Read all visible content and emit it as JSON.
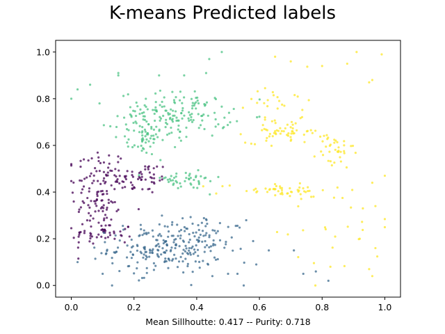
{
  "chart_data": {
    "type": "scatter",
    "title": "K-means Predicted labels",
    "xlabel": "Mean Sillhoutte: 0.417 -- Purity: 0.718",
    "ylabel": "",
    "xlim": [
      -0.05,
      1.05
    ],
    "ylim": [
      -0.05,
      1.05
    ],
    "xticks": [
      "0.0",
      "0.2",
      "0.4",
      "0.6",
      "0.8",
      "1.0"
    ],
    "yticks": [
      "0.0",
      "0.2",
      "0.4",
      "0.6",
      "0.8",
      "1.0"
    ],
    "grid": false,
    "legend": "none",
    "clusters": [
      {
        "color": "#440154",
        "regions": [
          {
            "cx": 0.09,
            "cy": 0.4,
            "sx": 0.045,
            "sy": 0.1,
            "n": 120
          },
          {
            "cx": 0.22,
            "cy": 0.46,
            "sx": 0.05,
            "sy": 0.035,
            "n": 55
          },
          {
            "cx": 0.1,
            "cy": 0.22,
            "sx": 0.05,
            "sy": 0.025,
            "n": 45
          }
        ]
      },
      {
        "color": "#3b6a8e",
        "regions": [
          {
            "cx": 0.3,
            "cy": 0.16,
            "sx": 0.09,
            "sy": 0.055,
            "n": 220
          },
          {
            "cx": 0.45,
            "cy": 0.22,
            "sx": 0.05,
            "sy": 0.03,
            "n": 30
          }
        ]
      },
      {
        "color": "#4cc384",
        "regions": [
          {
            "cx": 0.33,
            "cy": 0.73,
            "sx": 0.09,
            "sy": 0.05,
            "n": 170
          },
          {
            "cx": 0.23,
            "cy": 0.62,
            "sx": 0.025,
            "sy": 0.03,
            "n": 45
          },
          {
            "cx": 0.36,
            "cy": 0.45,
            "sx": 0.06,
            "sy": 0.02,
            "n": 45
          }
        ]
      },
      {
        "color": "#fde725",
        "regions": [
          {
            "cx": 0.68,
            "cy": 0.66,
            "sx": 0.06,
            "sy": 0.025,
            "n": 60
          },
          {
            "cx": 0.84,
            "cy": 0.57,
            "sx": 0.03,
            "sy": 0.04,
            "n": 35
          },
          {
            "cx": 0.65,
            "cy": 0.41,
            "sx": 0.09,
            "sy": 0.015,
            "n": 50
          },
          {
            "cx": 0.67,
            "cy": 0.8,
            "sx": 0.05,
            "sy": 0.04,
            "n": 20
          },
          {
            "cx": 0.85,
            "cy": 0.25,
            "sx": 0.1,
            "sy": 0.12,
            "n": 25
          }
        ]
      }
    ],
    "outliers": [
      {
        "x": 0.0,
        "y": 0.8,
        "c": 2
      },
      {
        "x": 0.02,
        "y": 0.84,
        "c": 2
      },
      {
        "x": 0.06,
        "y": 0.86,
        "c": 2
      },
      {
        "x": 0.09,
        "y": 0.78,
        "c": 2
      },
      {
        "x": 0.15,
        "y": 0.91,
        "c": 2
      },
      {
        "x": 0.15,
        "y": 0.9,
        "c": 2
      },
      {
        "x": 0.28,
        "y": 0.9,
        "c": 2
      },
      {
        "x": 0.44,
        "y": 0.97,
        "c": 2
      },
      {
        "x": 0.48,
        "y": 1.0,
        "c": 2
      },
      {
        "x": 0.43,
        "y": 0.91,
        "c": 2
      },
      {
        "x": 0.36,
        "y": 0.9,
        "c": 2
      },
      {
        "x": 0.0,
        "y": 0.52,
        "c": 0
      },
      {
        "x": 0.04,
        "y": 0.54,
        "c": 0
      },
      {
        "x": 0.02,
        "y": 0.1,
        "c": 1
      },
      {
        "x": 0.1,
        "y": 0.05,
        "c": 1
      },
      {
        "x": 0.13,
        "y": 0.0,
        "c": 1
      },
      {
        "x": 0.5,
        "y": 0.05,
        "c": 1
      },
      {
        "x": 0.55,
        "y": 0.0,
        "c": 1
      },
      {
        "x": 0.59,
        "y": 0.09,
        "c": 1
      },
      {
        "x": 0.63,
        "y": 0.15,
        "c": 1
      },
      {
        "x": 0.71,
        "y": 0.15,
        "c": 1
      },
      {
        "x": 0.74,
        "y": 0.05,
        "c": 1
      },
      {
        "x": 0.78,
        "y": 0.06,
        "c": 1
      },
      {
        "x": 0.82,
        "y": 0.02,
        "c": 1
      },
      {
        "x": 0.53,
        "y": 0.05,
        "c": 1
      },
      {
        "x": 0.45,
        "y": 0.04,
        "c": 1
      },
      {
        "x": 0.58,
        "y": 0.19,
        "c": 1
      },
      {
        "x": 0.91,
        "y": 1.0,
        "c": 3
      },
      {
        "x": 0.99,
        "y": 0.99,
        "c": 3
      },
      {
        "x": 0.65,
        "y": 0.98,
        "c": 3
      },
      {
        "x": 0.7,
        "y": 0.96,
        "c": 3
      },
      {
        "x": 0.8,
        "y": 0.94,
        "c": 3
      },
      {
        "x": 0.95,
        "y": 0.87,
        "c": 3
      },
      {
        "x": 0.96,
        "y": 0.88,
        "c": 3
      },
      {
        "x": 0.88,
        "y": 0.95,
        "c": 3
      },
      {
        "x": 1.0,
        "y": 0.47,
        "c": 3
      },
      {
        "x": 0.96,
        "y": 0.44,
        "c": 3
      },
      {
        "x": 0.97,
        "y": 0.34,
        "c": 3
      },
      {
        "x": 0.97,
        "y": 0.16,
        "c": 3
      },
      {
        "x": 0.95,
        "y": 0.07,
        "c": 3
      },
      {
        "x": 0.96,
        "y": 0.04,
        "c": 3
      },
      {
        "x": 0.92,
        "y": 0.2,
        "c": 3
      },
      {
        "x": 0.93,
        "y": 0.33,
        "c": 3
      }
    ]
  }
}
